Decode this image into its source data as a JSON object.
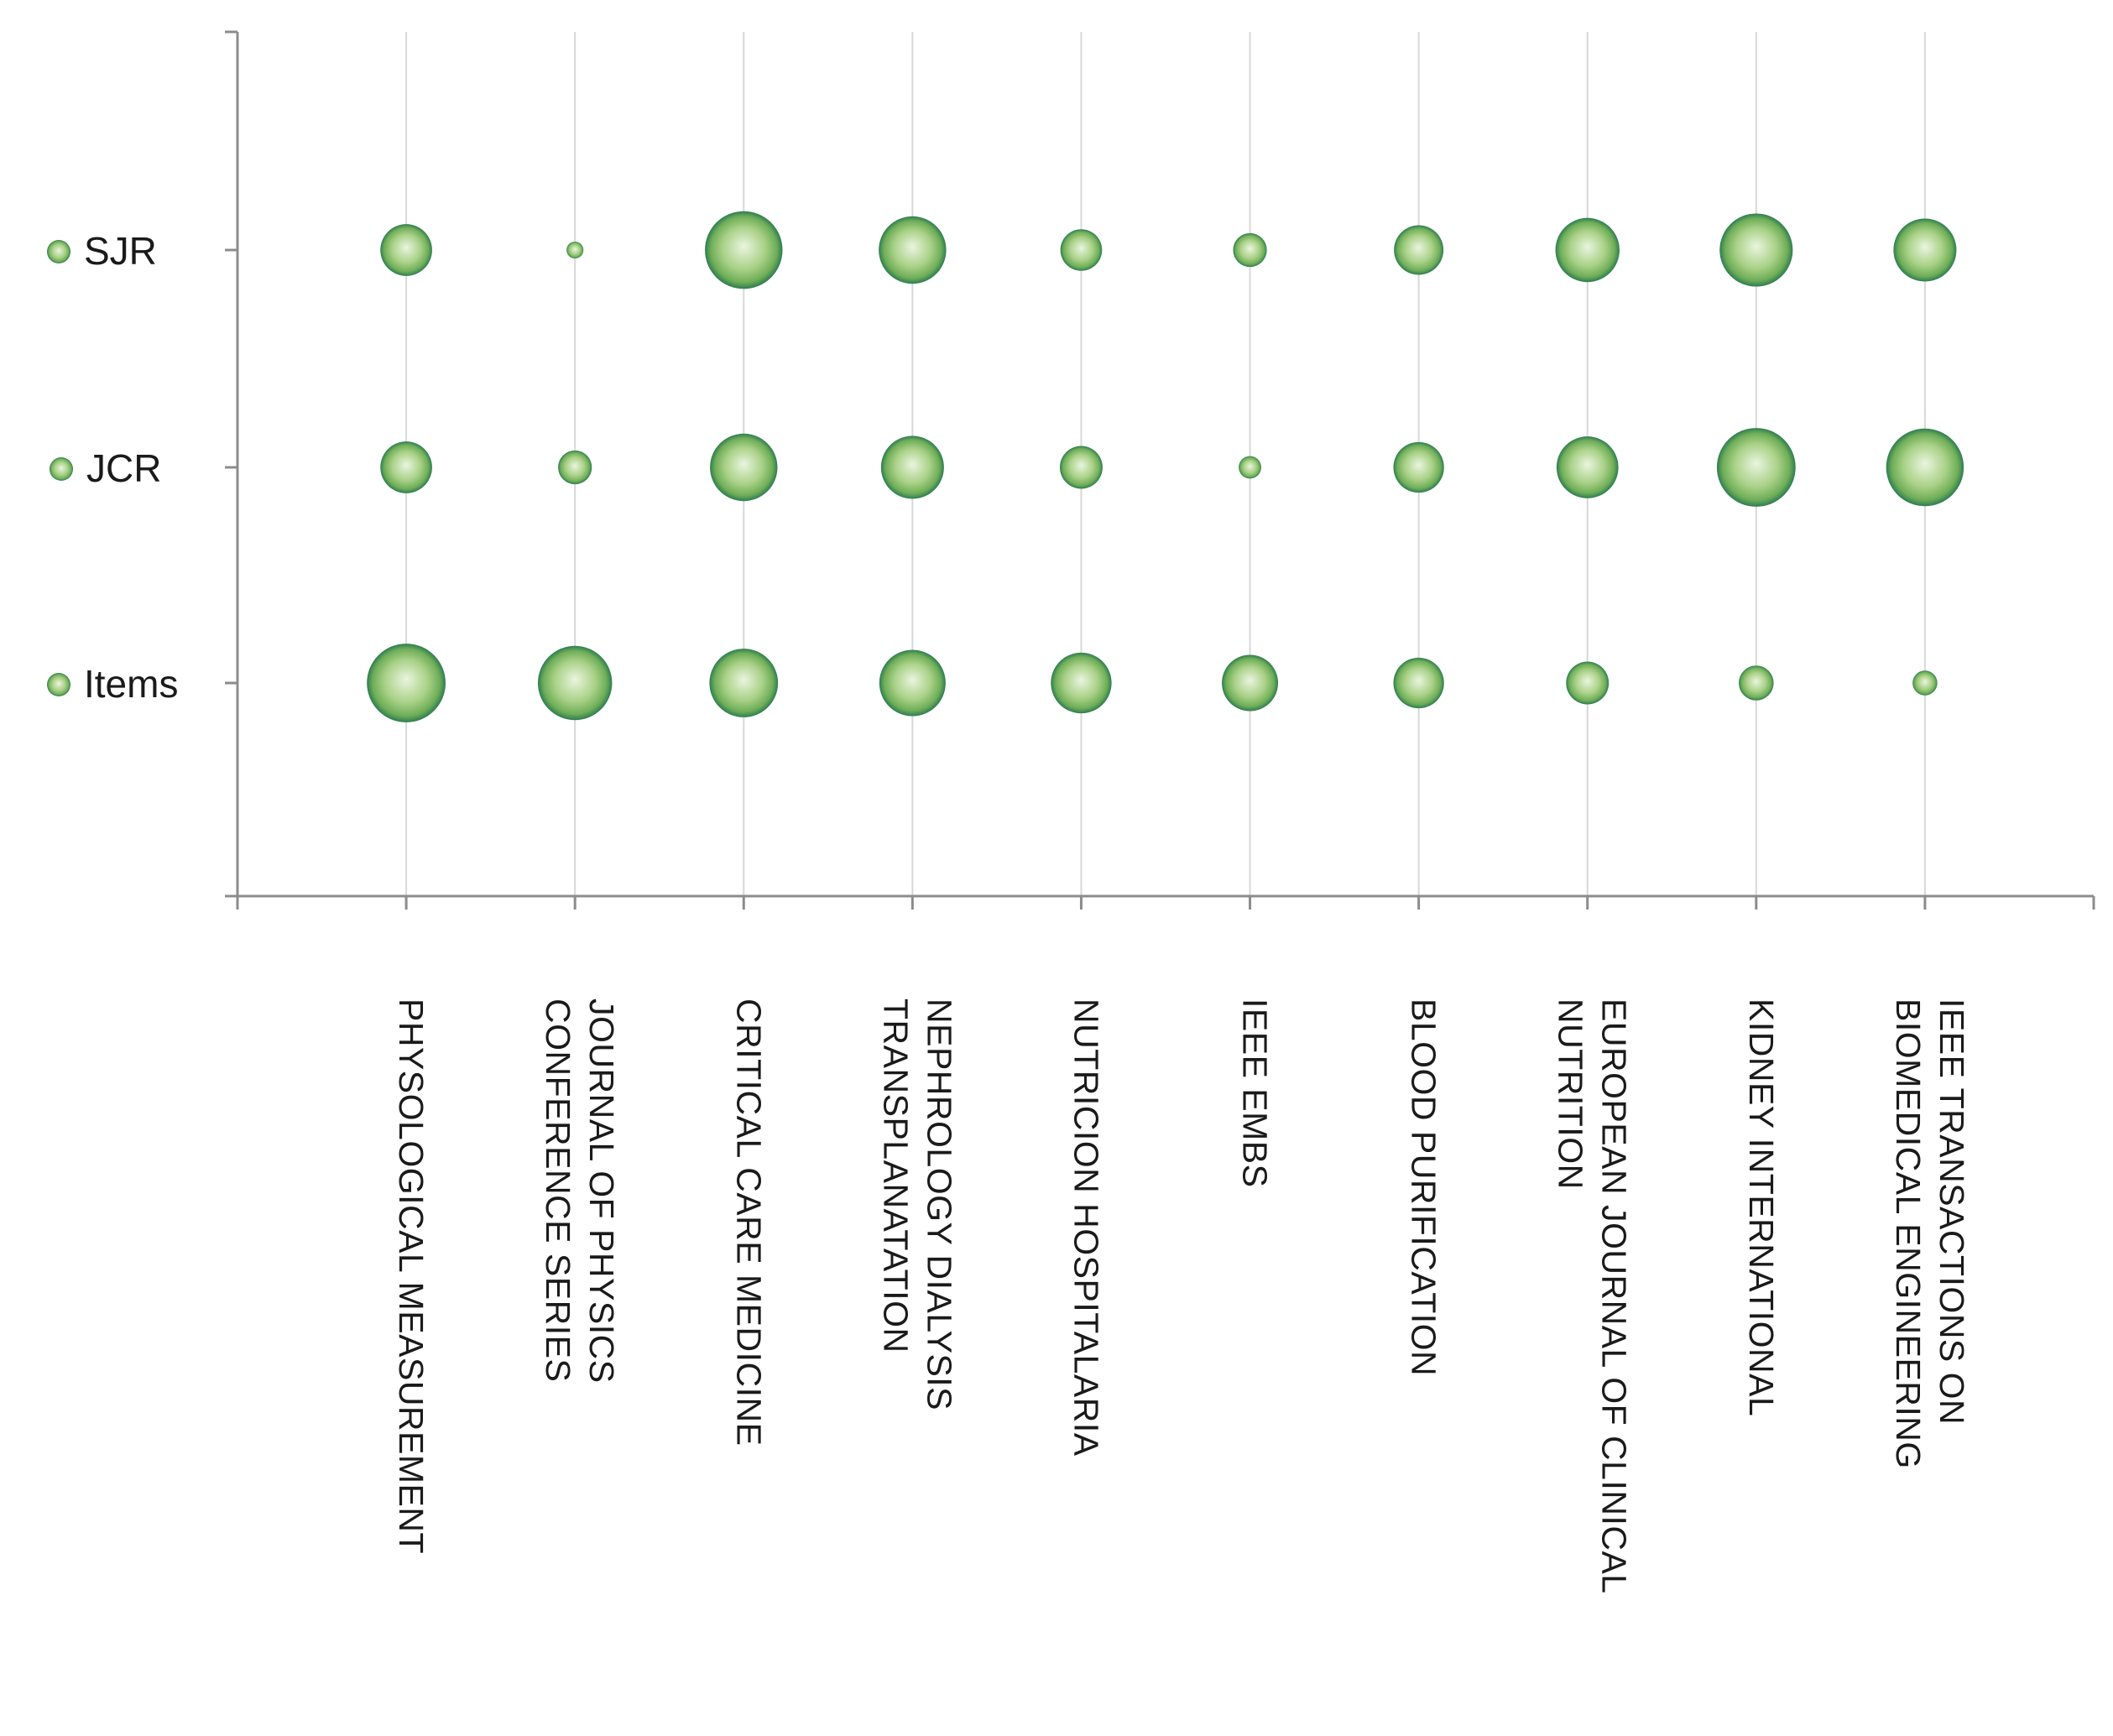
{
  "chart_data": {
    "type": "bubble",
    "rows": [
      "SJR",
      "JCR",
      "Items"
    ],
    "categories": [
      [
        "PHYSOLOGICAL MEASUREMENT"
      ],
      [
        "JOURNAL OF PHYSICS",
        "CONFERENCE SERIES"
      ],
      [
        "CRITICAL CARE MEDICINE"
      ],
      [
        "NEPHROLOGY DIALYSIS",
        "TRANSPLANATATION"
      ],
      [
        "NUTRICION HOSPITALARIA"
      ],
      [
        "IEEE EMBS"
      ],
      [
        "BLOOD PURIFICATION"
      ],
      [
        "EUROPEAN JOURNAL OF CLINICAL",
        "NUTRITION"
      ],
      [
        "KIDNEY INTERNATIONAL"
      ],
      [
        "IEEE TRANSACTIONS ON",
        "BIOMEDICAL ENGINEERING"
      ]
    ],
    "bubble_sizes": {
      "SJR": [
        0.46,
        0.15,
        0.69,
        0.6,
        0.37,
        0.3,
        0.44,
        0.57,
        0.65,
        0.56
      ],
      "JCR": [
        0.46,
        0.3,
        0.6,
        0.56,
        0.38,
        0.2,
        0.45,
        0.55,
        0.7,
        0.69
      ],
      "Items": [
        0.7,
        0.66,
        0.61,
        0.59,
        0.54,
        0.5,
        0.45,
        0.38,
        0.31,
        0.22
      ]
    },
    "grid": true,
    "legend": "left",
    "colors": {
      "bubble_center": "#eaf5df",
      "bubble_mid": "#9cc97a",
      "bubble_edge": "#2e7d52",
      "gridline": "#d8d8d8",
      "axis": "#8c8c8c"
    }
  }
}
